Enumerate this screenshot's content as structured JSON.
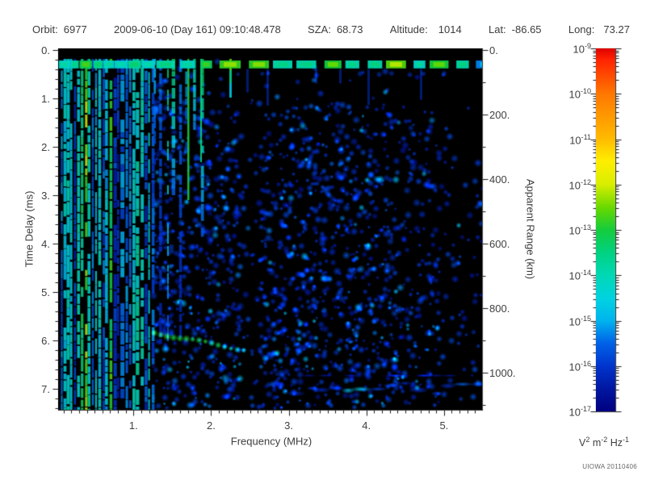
{
  "header": {
    "items": [
      {
        "label": "Orbit:",
        "value": "6977"
      },
      {
        "label": "",
        "value": "2009-06-10 (Day 161) 09:10:48.478"
      },
      {
        "label": "SZA:",
        "value": "68.73"
      },
      {
        "label": "Altitude:",
        "value": "1014"
      },
      {
        "label": "Lat:",
        "value": "-86.65"
      },
      {
        "label": "Long:",
        "value": "73.27"
      }
    ]
  },
  "chart_data": {
    "type": "heatmap",
    "title": "",
    "xlabel": "Frequency (MHz)",
    "ylabel": "Time Delay (ms)",
    "y2label": "Apparent Range (km)",
    "x_axis": {
      "min": 0.03,
      "max": 5.49,
      "major_ticks": [
        1,
        2,
        3,
        4,
        5
      ],
      "tick_labels": [
        "1.",
        "2.",
        "3.",
        "4.",
        "5."
      ],
      "minor_step": 0.1
    },
    "y_axis": {
      "min": -0.03,
      "max": 7.44,
      "major_ticks": [
        0,
        1,
        2,
        3,
        4,
        5,
        6,
        7
      ],
      "tick_labels": [
        "0.",
        "1.",
        "2.",
        "3.",
        "4.",
        "5.",
        "6.",
        "7."
      ],
      "minor_step": 0.2
    },
    "y2_axis": {
      "min": -4,
      "max": 1115,
      "major_ticks": [
        0,
        200,
        400,
        600,
        800,
        1000
      ],
      "tick_labels": [
        "0.",
        "200.",
        "400.",
        "600.",
        "800.",
        "1000."
      ],
      "minor_step": 100
    },
    "colorbar": {
      "scale": "log",
      "tick_exponents": [
        -9,
        -10,
        -11,
        -12,
        -13,
        -14,
        -15,
        -16,
        -17
      ],
      "units_parts": [
        {
          "base": "V",
          "sup": "2"
        },
        {
          "base": " m",
          "sup": "-2"
        },
        {
          "base": " Hz",
          "sup": "-1"
        }
      ],
      "gradient": [
        {
          "p": 0.0,
          "c": "#dd0000"
        },
        {
          "p": 0.03,
          "c": "#ff2200"
        },
        {
          "p": 0.125,
          "c": "#ff7700"
        },
        {
          "p": 0.25,
          "c": "#ffbb00"
        },
        {
          "p": 0.31,
          "c": "#ffee00"
        },
        {
          "p": 0.375,
          "c": "#d8ee00"
        },
        {
          "p": 0.44,
          "c": "#66d800"
        },
        {
          "p": 0.5,
          "c": "#14cc3c"
        },
        {
          "p": 0.565,
          "c": "#00d284"
        },
        {
          "p": 0.625,
          "c": "#00d8b4"
        },
        {
          "p": 0.69,
          "c": "#00d2e0"
        },
        {
          "p": 0.75,
          "c": "#00b4ee"
        },
        {
          "p": 0.81,
          "c": "#0064e8"
        },
        {
          "p": 0.875,
          "c": "#0034cc"
        },
        {
          "p": 0.94,
          "c": "#0016a0"
        },
        {
          "p": 1.0,
          "c": "#000080"
        }
      ]
    },
    "features": {
      "transmit_pulse_band": {
        "delay_ms": [
          0.22,
          0.4
        ],
        "freq_mhz": [
          0.03,
          5.49
        ]
      },
      "plasma_stripe_region": {
        "freq_mhz": [
          0.03,
          1.25
        ],
        "delay_ms": [
          0.22,
          7.44
        ]
      },
      "fading_stripe_region": {
        "freq_mhz": [
          1.25,
          1.9
        ]
      },
      "quiet_column": {
        "freq_mhz": [
          2.38,
          2.62
        ]
      },
      "ionospheric_echo_trace": {
        "from_mhz_ms": [
          1.27,
          5.85
        ],
        "to_mhz_ms": [
          2.42,
          6.2
        ],
        "tail_to_mhz_ms": [
          2.85,
          6.3
        ]
      },
      "surface_reflection_band": {
        "freq_mhz": [
          3.05,
          5.45
        ],
        "delay_ms": [
          6.85,
          7.15
        ]
      },
      "noise_speckle": {
        "freq_mhz": [
          1.25,
          5.49
        ],
        "delay_ms": [
          0.4,
          7.44
        ]
      }
    },
    "credit": "UIOWA 20110406"
  }
}
